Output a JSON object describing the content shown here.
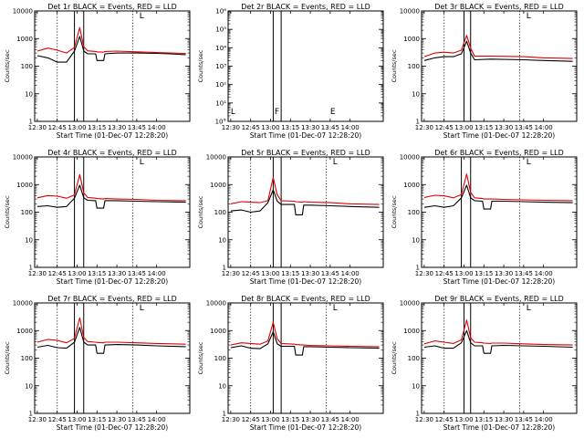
{
  "page": {
    "colors": {
      "events": "#000000",
      "lld": "#dd0000",
      "background": "#ffffff",
      "axes": "#000000"
    }
  },
  "chart_data": [
    {
      "type": "line",
      "title": "Det 1r BLACK = Events, RED = LLD",
      "xlabel": "Start Time (01-Dec-07 12:28:20)",
      "ylabel": "Counts/sec",
      "xlim": [
        "12:28",
        "14:25"
      ],
      "ylim": [
        1,
        10000
      ],
      "yscale": "log",
      "xticks": [
        "12:30",
        "12:45",
        "13:00",
        "13:15",
        "13:30",
        "13:45",
        "14:00"
      ],
      "yticks": [
        "1",
        "10",
        "100",
        "1000",
        "10000"
      ],
      "x": [
        "12:30",
        "12:38",
        "12:45",
        "12:52",
        "12:58",
        "13:02",
        "13:05",
        "13:08",
        "13:14",
        "13:15",
        "13:20",
        "13:21",
        "13:30",
        "13:45",
        "14:00",
        "14:10",
        "14:22"
      ],
      "series": [
        {
          "name": "Events",
          "values": [
            240,
            200,
            140,
            140,
            350,
            1200,
            350,
            280,
            280,
            160,
            160,
            280,
            300,
            300,
            290,
            280,
            260
          ]
        },
        {
          "name": "LLD",
          "values": [
            350,
            450,
            380,
            300,
            480,
            2500,
            500,
            360,
            340,
            330,
            320,
            340,
            350,
            330,
            310,
            300,
            290
          ]
        }
      ],
      "markers": {
        "dotted_at": [
          "12:45",
          "13:42"
        ],
        "solid_at": [
          "12:58",
          "13:05"
        ],
        "letters": [
          {
            "text": "L",
            "x": "13:47"
          }
        ]
      }
    },
    {
      "type": "line",
      "title": "Det 2r BLACK = Events, RED = LLD",
      "xlabel": "Start Time (01-Dec-07 12:28:20)",
      "ylabel": "Counts/sec",
      "xlim": [
        "12:28",
        "14:25"
      ],
      "ylim": [
        1,
        1000000
      ],
      "yscale": "log",
      "xticks": [
        "12:30",
        "12:45",
        "13:00",
        "13:15",
        "13:30",
        "13:45",
        "14:00"
      ],
      "yticks": [
        "10°",
        "10¹",
        "10²",
        "10³",
        "10⁴",
        "10⁵",
        "10⁶"
      ],
      "x": [],
      "series": [],
      "markers": {
        "dotted_at": [],
        "solid_at": [
          "13:02",
          "13:08"
        ],
        "letters": [
          {
            "text": "L",
            "x": "12:30"
          },
          {
            "text": "F",
            "x": "13:03"
          },
          {
            "text": "E",
            "x": "13:45"
          }
        ]
      }
    },
    {
      "type": "line",
      "title": "Det 3r BLACK = Events, RED = LLD",
      "xlabel": "Start Time (01-Dec-07 12:28:20)",
      "ylabel": "Counts/sec",
      "xlim": [
        "12:28",
        "14:25"
      ],
      "ylim": [
        1,
        10000
      ],
      "yscale": "log",
      "xticks": [
        "12:30",
        "12:45",
        "13:00",
        "13:15",
        "13:30",
        "13:45",
        "14:00"
      ],
      "yticks": [
        "1",
        "10",
        "100",
        "1000",
        "10000"
      ],
      "x": [
        "12:30",
        "12:38",
        "12:45",
        "12:52",
        "12:58",
        "13:02",
        "13:05",
        "13:08",
        "13:20",
        "13:45",
        "14:00",
        "14:22"
      ],
      "series": [
        {
          "name": "Events",
          "values": [
            160,
            200,
            220,
            220,
            280,
            800,
            300,
            170,
            180,
            170,
            160,
            150
          ]
        },
        {
          "name": "LLD",
          "values": [
            220,
            300,
            320,
            300,
            380,
            1300,
            450,
            230,
            230,
            220,
            200,
            190
          ]
        }
      ],
      "markers": {
        "dotted_at": [
          "12:45",
          "13:42"
        ],
        "solid_at": [
          "13:00",
          "13:05"
        ],
        "letters": [
          {
            "text": "L",
            "x": "13:47"
          }
        ]
      }
    },
    {
      "type": "line",
      "title": "Det 4r BLACK = Events, RED = LLD",
      "xlabel": "Start Time (01-Dec-07 12:28:20)",
      "ylabel": "Counts/sec",
      "xlim": [
        "12:28",
        "14:25"
      ],
      "ylim": [
        1,
        10000
      ],
      "yscale": "log",
      "xticks": [
        "12:30",
        "12:45",
        "13:00",
        "13:15",
        "13:30",
        "13:45",
        "14:00"
      ],
      "yticks": [
        "1",
        "10",
        "100",
        "1000",
        "10000"
      ],
      "x": [
        "12:30",
        "12:38",
        "12:45",
        "12:52",
        "12:58",
        "13:02",
        "13:05",
        "13:08",
        "13:14",
        "13:15",
        "13:20",
        "13:21",
        "13:30",
        "13:45",
        "14:00",
        "14:22"
      ],
      "series": [
        {
          "name": "Events",
          "values": [
            160,
            170,
            150,
            160,
            320,
            950,
            330,
            270,
            260,
            140,
            140,
            260,
            260,
            250,
            240,
            230
          ]
        },
        {
          "name": "LLD",
          "values": [
            330,
            400,
            380,
            320,
            420,
            2300,
            500,
            340,
            320,
            310,
            300,
            310,
            300,
            290,
            270,
            260
          ]
        }
      ],
      "markers": {
        "dotted_at": [
          "12:45",
          "13:42"
        ],
        "solid_at": [
          "12:58",
          "13:05"
        ],
        "letters": [
          {
            "text": "L",
            "x": "13:47"
          }
        ]
      }
    },
    {
      "type": "line",
      "title": "Det 5r BLACK = Events, RED = LLD",
      "xlabel": "Start Time (01-Dec-07 12:28:20)",
      "ylabel": "Counts/sec",
      "xlim": [
        "12:28",
        "14:25"
      ],
      "ylim": [
        1,
        10000
      ],
      "yscale": "log",
      "xticks": [
        "12:30",
        "12:45",
        "13:00",
        "13:15",
        "13:30",
        "13:45",
        "14:00"
      ],
      "yticks": [
        "1",
        "10",
        "100",
        "1000",
        "10000"
      ],
      "x": [
        "12:30",
        "12:38",
        "12:45",
        "12:52",
        "12:58",
        "13:02",
        "13:05",
        "13:08",
        "13:18",
        "13:19",
        "13:24",
        "13:25",
        "13:30",
        "13:45",
        "14:00",
        "14:22"
      ],
      "series": [
        {
          "name": "Events",
          "values": [
            110,
            120,
            100,
            110,
            220,
            650,
            250,
            190,
            190,
            80,
            80,
            180,
            180,
            170,
            160,
            150
          ]
        },
        {
          "name": "LLD",
          "values": [
            200,
            240,
            230,
            220,
            260,
            1800,
            420,
            260,
            250,
            240,
            230,
            240,
            230,
            220,
            200,
            190
          ]
        }
      ],
      "markers": {
        "dotted_at": [
          "12:45",
          "13:42"
        ],
        "solid_at": [
          "13:02",
          "13:08"
        ],
        "letters": [
          {
            "text": "L",
            "x": "13:47"
          }
        ]
      }
    },
    {
      "type": "line",
      "title": "Det 6r BLACK = Events, RED = LLD",
      "xlabel": "Start Time (01-Dec-07 12:28:20)",
      "ylabel": "Counts/sec",
      "xlim": [
        "12:28",
        "14:25"
      ],
      "ylim": [
        1,
        10000
      ],
      "yscale": "log",
      "xticks": [
        "12:30",
        "12:45",
        "13:00",
        "13:15",
        "13:30",
        "13:45",
        "14:00"
      ],
      "yticks": [
        "1",
        "10",
        "100",
        "1000",
        "10000"
      ],
      "x": [
        "12:30",
        "12:38",
        "12:45",
        "12:52",
        "12:58",
        "13:02",
        "13:05",
        "13:08",
        "13:14",
        "13:15",
        "13:20",
        "13:21",
        "13:30",
        "13:45",
        "14:00",
        "14:22"
      ],
      "series": [
        {
          "name": "Events",
          "values": [
            150,
            170,
            150,
            170,
            330,
            950,
            330,
            260,
            250,
            130,
            130,
            250,
            250,
            240,
            230,
            220
          ]
        },
        {
          "name": "LLD",
          "values": [
            340,
            410,
            390,
            330,
            430,
            2400,
            520,
            330,
            310,
            300,
            300,
            300,
            290,
            280,
            270,
            260
          ]
        }
      ],
      "markers": {
        "dotted_at": [
          "12:45",
          "13:42"
        ],
        "solid_at": [
          "12:58",
          "13:05"
        ],
        "letters": [
          {
            "text": "L",
            "x": "13:47"
          }
        ]
      }
    },
    {
      "type": "line",
      "title": "Det 7r BLACK = Events, RED = LLD",
      "xlabel": "Start Time (01-Dec-07 12:28:20)",
      "ylabel": "Counts/sec",
      "xlim": [
        "12:28",
        "14:25"
      ],
      "ylim": [
        1,
        10000
      ],
      "yscale": "log",
      "xticks": [
        "12:30",
        "12:45",
        "13:00",
        "13:15",
        "13:30",
        "13:45",
        "14:00"
      ],
      "yticks": [
        "1",
        "10",
        "100",
        "1000",
        "10000"
      ],
      "x": [
        "12:30",
        "12:38",
        "12:45",
        "12:52",
        "12:58",
        "13:02",
        "13:05",
        "13:08",
        "13:14",
        "13:15",
        "13:20",
        "13:21",
        "13:30",
        "13:45",
        "14:00",
        "14:22"
      ],
      "series": [
        {
          "name": "Events",
          "values": [
            250,
            290,
            240,
            230,
            380,
            1300,
            380,
            300,
            300,
            150,
            150,
            300,
            310,
            300,
            280,
            260
          ]
        },
        {
          "name": "LLD",
          "values": [
            380,
            480,
            440,
            360,
            520,
            2900,
            560,
            400,
            380,
            370,
            360,
            380,
            380,
            360,
            340,
            320
          ]
        }
      ],
      "markers": {
        "dotted_at": [
          "12:45",
          "13:42"
        ],
        "solid_at": [
          "12:58",
          "13:05"
        ],
        "letters": [
          {
            "text": "L",
            "x": "13:47"
          }
        ]
      }
    },
    {
      "type": "line",
      "title": "Det 8r BLACK = Events, RED = LLD",
      "xlabel": "Start Time (01-Dec-07 12:28:20)",
      "ylabel": "Counts/sec",
      "xlim": [
        "12:28",
        "14:25"
      ],
      "ylim": [
        1,
        10000
      ],
      "yscale": "log",
      "xticks": [
        "12:30",
        "12:45",
        "13:00",
        "13:15",
        "13:30",
        "13:45",
        "14:00"
      ],
      "yticks": [
        "1",
        "10",
        "100",
        "1000",
        "10000"
      ],
      "x": [
        "12:30",
        "12:38",
        "12:45",
        "12:52",
        "12:58",
        "13:02",
        "13:05",
        "13:08",
        "13:18",
        "13:19",
        "13:24",
        "13:25",
        "13:30",
        "13:45",
        "14:00",
        "14:22"
      ],
      "series": [
        {
          "name": "Events",
          "values": [
            240,
            280,
            230,
            220,
            330,
            900,
            330,
            270,
            270,
            130,
            130,
            260,
            260,
            250,
            240,
            230
          ]
        },
        {
          "name": "LLD",
          "values": [
            300,
            360,
            340,
            320,
            420,
            2000,
            500,
            340,
            320,
            310,
            300,
            300,
            290,
            280,
            270,
            260
          ]
        }
      ],
      "markers": {
        "dotted_at": [
          "12:45",
          "13:42"
        ],
        "solid_at": [
          "13:02",
          "13:08"
        ],
        "letters": [
          {
            "text": "L",
            "x": "13:47"
          }
        ]
      }
    },
    {
      "type": "line",
      "title": "Det 9r BLACK = Events, RED = LLD",
      "xlabel": "Start Time (01-Dec-07 12:28:20)",
      "ylabel": "Counts/sec",
      "xlim": [
        "12:28",
        "14:25"
      ],
      "ylim": [
        1,
        10000
      ],
      "yscale": "log",
      "xticks": [
        "12:30",
        "12:45",
        "13:00",
        "13:15",
        "13:30",
        "13:45",
        "14:00"
      ],
      "yticks": [
        "1",
        "10",
        "100",
        "1000",
        "10000"
      ],
      "x": [
        "12:30",
        "12:38",
        "12:45",
        "12:52",
        "12:58",
        "13:02",
        "13:05",
        "13:08",
        "13:14",
        "13:15",
        "13:20",
        "13:21",
        "13:30",
        "13:45",
        "14:00",
        "14:22"
      ],
      "series": [
        {
          "name": "Events",
          "values": [
            250,
            280,
            230,
            230,
            360,
            1000,
            360,
            280,
            280,
            150,
            150,
            280,
            290,
            280,
            270,
            250
          ]
        },
        {
          "name": "LLD",
          "values": [
            330,
            420,
            380,
            340,
            460,
            2400,
            540,
            380,
            360,
            350,
            340,
            350,
            350,
            330,
            310,
            300
          ]
        }
      ],
      "markers": {
        "dotted_at": [
          "12:45",
          "13:42"
        ],
        "solid_at": [
          "13:00",
          "13:05"
        ],
        "letters": [
          {
            "text": "L",
            "x": "13:47"
          }
        ]
      }
    }
  ]
}
